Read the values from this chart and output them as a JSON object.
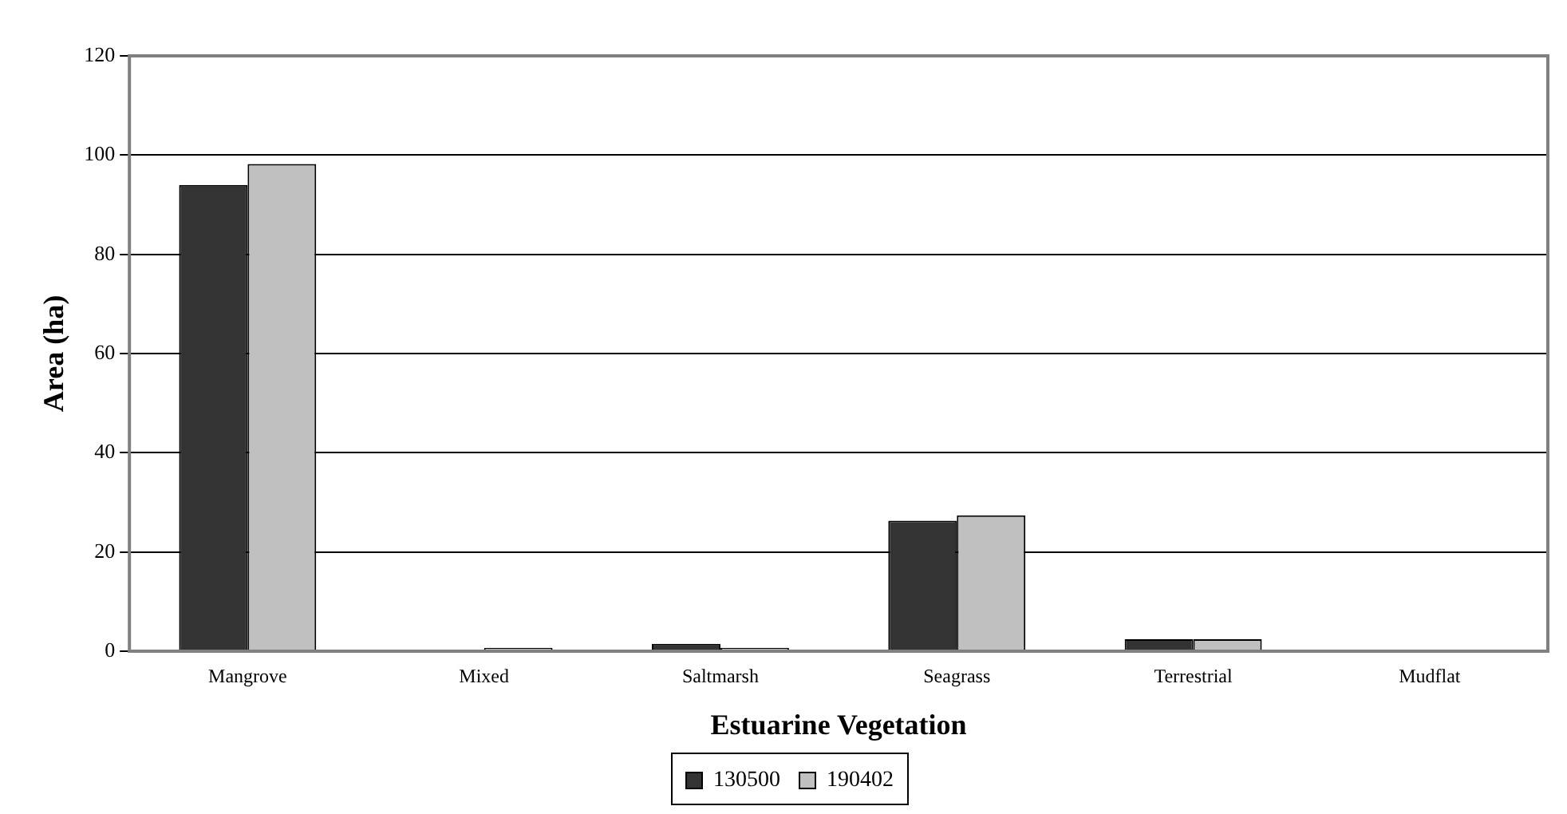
{
  "chart_data": {
    "type": "bar",
    "xlabel": "Estuarine Vegetation",
    "ylabel": "Area (ha)",
    "categories": [
      "Mangrove",
      "Mixed",
      "Saltmarsh",
      "Seagrass",
      "Terrestrial",
      "Mudflat"
    ],
    "series": [
      {
        "name": "130500",
        "color": "#333333",
        "values": [
          94,
          0,
          1.5,
          26.3,
          2.4,
          0
        ]
      },
      {
        "name": "190402",
        "color": "#c0c0c0",
        "values": [
          98.2,
          0.7,
          0.7,
          27.4,
          2.4,
          0
        ]
      }
    ],
    "ylim": [
      0,
      120
    ],
    "yticks": [
      0,
      20,
      40,
      60,
      80,
      100,
      120
    ],
    "grid": "y",
    "legend": "bottom"
  }
}
